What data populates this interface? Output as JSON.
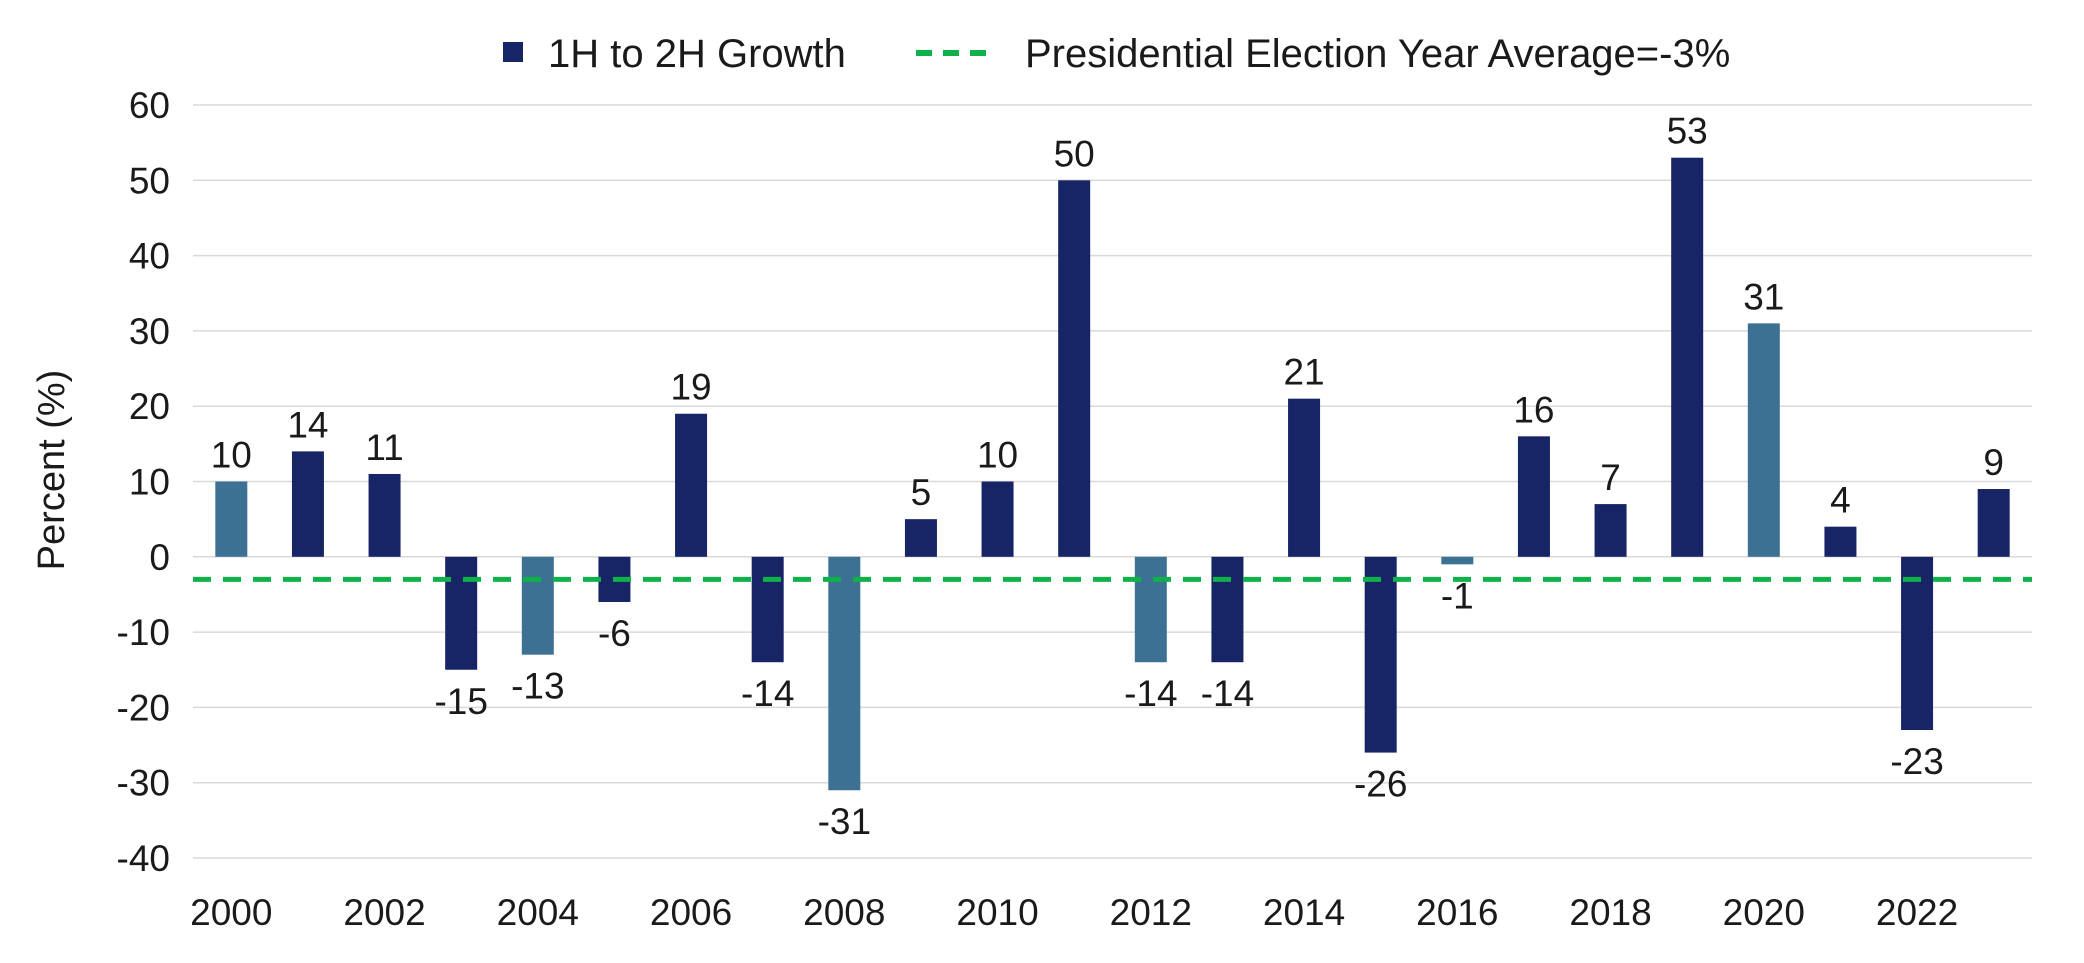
{
  "chart_data": {
    "type": "bar",
    "title": "",
    "xlabel": "",
    "ylabel": "Percent (%)",
    "ylim": [
      -40,
      60
    ],
    "yticks": [
      60,
      50,
      40,
      30,
      20,
      10,
      0,
      -10,
      -20,
      -30,
      -40
    ],
    "xtick_labels": [
      "2000",
      "2002",
      "2004",
      "2006",
      "2008",
      "2010",
      "2012",
      "2014",
      "2016",
      "2018",
      "2020",
      "2022"
    ],
    "categories": [
      "2000",
      "2001",
      "2002",
      "2003",
      "2004",
      "2005",
      "2006",
      "2007",
      "2008",
      "2009",
      "2010",
      "2011",
      "2012",
      "2013",
      "2014",
      "2015",
      "2016",
      "2017",
      "2018",
      "2019",
      "2020",
      "2021",
      "2022",
      "2023"
    ],
    "series": [
      {
        "name": "1H to 2H Growth",
        "values": [
          10,
          14,
          11,
          -15,
          -13,
          -6,
          19,
          -14,
          -31,
          5,
          10,
          50,
          -14,
          -14,
          21,
          -26,
          -1,
          16,
          7,
          53,
          31,
          4,
          -23,
          9
        ],
        "labels": [
          "10",
          "14",
          "11",
          "-15",
          "-13",
          "-6",
          "19",
          "-14",
          "-31",
          "5",
          "10",
          "50",
          "-14",
          "-14",
          "21",
          "-26",
          "-1",
          "16",
          "7",
          "53",
          "31",
          "4",
          "-23",
          "9"
        ],
        "election_years": [
          "2000",
          "2004",
          "2008",
          "2012",
          "2016",
          "2020"
        ]
      }
    ],
    "reference_line": {
      "name": "Presidential Election Year Average=-3%",
      "value": -3
    },
    "grid": true,
    "legend_position": "top"
  },
  "legend": {
    "series_label": "1H to 2H Growth",
    "line_label": "Presidential Election Year Average=-3%"
  },
  "colors": {
    "bar": "#172466",
    "election_bar": "#3d7194",
    "reference_line": "#10b04a",
    "grid": "#d9d9d9",
    "axis": "#bfbfbf"
  }
}
